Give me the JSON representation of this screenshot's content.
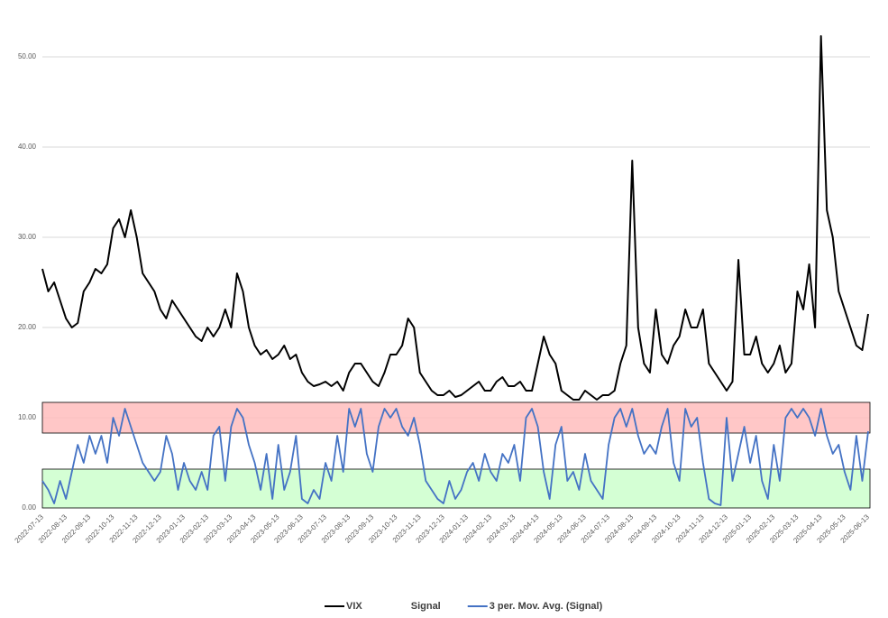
{
  "chart_data": {
    "type": "line",
    "categories": [
      "2022-07-13",
      null,
      null,
      null,
      "2022-08-13",
      null,
      null,
      null,
      "2022-09-13",
      null,
      null,
      null,
      "2022-10-13",
      null,
      null,
      null,
      "2022-11-13",
      null,
      null,
      null,
      "2022-12-13",
      null,
      null,
      null,
      "2023-01-13",
      null,
      null,
      null,
      "2023-02-13",
      null,
      null,
      null,
      "2023-03-13",
      null,
      null,
      null,
      "2023-04-13",
      null,
      null,
      null,
      "2023-05-13",
      null,
      null,
      null,
      "2023-06-13",
      null,
      null,
      null,
      "2023-07-13",
      null,
      null,
      null,
      "2023-08-13",
      null,
      null,
      null,
      "2023-09-13",
      null,
      null,
      null,
      "2023-10-13",
      null,
      null,
      null,
      "2023-11-13",
      null,
      null,
      null,
      "2023-12-13",
      null,
      null,
      null,
      "2024-01-13",
      null,
      null,
      null,
      "2024-02-13",
      null,
      null,
      null,
      "2024-03-13",
      null,
      null,
      null,
      "2024-04-13",
      null,
      null,
      null,
      "2024-05-13",
      null,
      null,
      null,
      "2024-06-13",
      null,
      null,
      null,
      "2024-07-13",
      null,
      null,
      null,
      "2024-08-13",
      null,
      null,
      null,
      "2024-09-13",
      null,
      null,
      null,
      "2024-10-13",
      null,
      null,
      null,
      "2024-11-13",
      null,
      null,
      null,
      "2024-12-13",
      null,
      null,
      null,
      "2025-01-13",
      null,
      null,
      null,
      "2025-02-13",
      null,
      null,
      null,
      "2025-03-13",
      null,
      null,
      null,
      "2025-04-13",
      null,
      null,
      null,
      "2025-05-13",
      null,
      null,
      null,
      "2025-06-13"
    ],
    "series": [
      {
        "name": "VIX",
        "color": "#000000",
        "values": [
          26.5,
          24,
          25,
          23,
          21,
          20,
          20.5,
          24,
          25,
          26.5,
          26,
          27,
          31,
          32,
          30,
          33,
          30,
          26,
          25,
          24,
          22,
          21,
          23,
          22,
          21,
          20,
          19,
          18.5,
          20,
          19,
          20,
          22,
          20,
          26,
          24,
          20,
          18,
          17,
          17.5,
          16.5,
          17,
          18,
          16.5,
          17,
          15,
          14,
          13.5,
          13.7,
          14,
          13.5,
          14,
          13,
          15,
          16,
          16,
          15,
          14,
          13.5,
          15,
          17,
          17,
          18,
          21,
          20,
          15,
          14,
          13,
          12.5,
          12.5,
          13,
          12.3,
          12.5,
          13,
          13.5,
          14,
          13,
          13,
          14,
          14.5,
          13.5,
          13.5,
          14,
          13,
          13,
          16,
          19,
          17,
          16,
          13,
          12.5,
          12,
          12,
          13,
          12.5,
          12,
          12.5,
          12.5,
          13,
          16,
          18,
          38.5,
          20,
          16,
          15,
          22,
          17,
          16,
          18,
          19,
          22,
          20,
          20,
          22,
          16,
          15,
          14,
          13,
          14,
          27.5,
          17,
          17,
          19,
          16,
          15,
          16,
          18,
          15,
          16,
          24,
          22,
          27,
          20,
          52.3,
          33,
          30,
          24,
          22,
          20,
          18,
          17.5,
          21.5
        ]
      },
      {
        "name": "Signal",
        "color": "none"
      },
      {
        "name": "3 per. Mov. Avg. (Signal)",
        "color": "#4472c4",
        "values": [
          3,
          2,
          0.5,
          3,
          1,
          4,
          7,
          5,
          8,
          6,
          8,
          5,
          10,
          8,
          11,
          9,
          7,
          5,
          4,
          3,
          4,
          8,
          6,
          2,
          5,
          3,
          2,
          4,
          2,
          8,
          9,
          3,
          9,
          11,
          10,
          7,
          5,
          2,
          6,
          1,
          7,
          2,
          4,
          8,
          1,
          0.5,
          2,
          1,
          5,
          3,
          8,
          4,
          11,
          9,
          11,
          6,
          4,
          9,
          11,
          10,
          11,
          9,
          8,
          10,
          7,
          3,
          2,
          1,
          0.5,
          3,
          1,
          2,
          4,
          5,
          3,
          6,
          4,
          3,
          6,
          5,
          7,
          3,
          10,
          11,
          9,
          4,
          1,
          7,
          9,
          3,
          4,
          2,
          6,
          3,
          2,
          1,
          7,
          10,
          11,
          9,
          11,
          8,
          6,
          7,
          6,
          9,
          11,
          5,
          3,
          11,
          9,
          10,
          5,
          1,
          0.5,
          0.3,
          10,
          3,
          6,
          9,
          5,
          8,
          3,
          1,
          7,
          3,
          10,
          11,
          10,
          11,
          10,
          8,
          11,
          8,
          6,
          7,
          4,
          2,
          8,
          3,
          8.5
        ]
      }
    ],
    "bands": [
      {
        "range": [
          8.3,
          11.7
        ],
        "color": "#ffbdbd"
      },
      {
        "range": [
          0,
          4.3
        ],
        "color": "#ccffcc"
      }
    ],
    "ylim": [
      0,
      53
    ],
    "yticks": [
      {
        "value": 0,
        "label": "0.00"
      },
      {
        "value": 10,
        "label": "10.00"
      },
      {
        "value": 20,
        "label": "20.00"
      },
      {
        "value": 30,
        "label": "30.00"
      },
      {
        "value": 40,
        "label": "40.00"
      },
      {
        "value": 50,
        "label": "50.00"
      }
    ],
    "grid": true,
    "legend": "bottom"
  }
}
